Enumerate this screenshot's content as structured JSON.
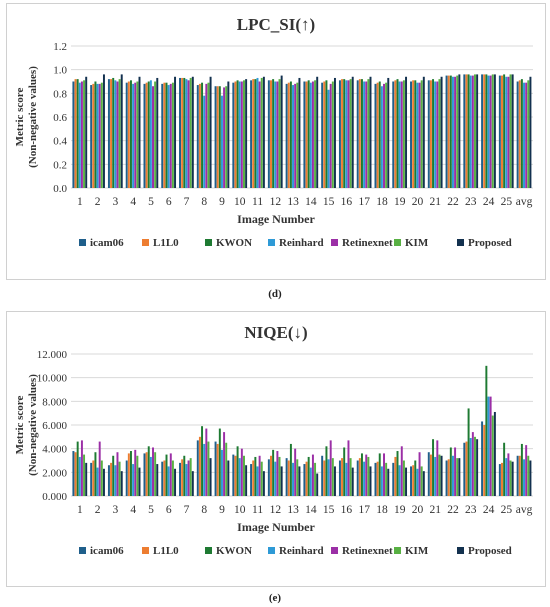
{
  "subfigure_labels": [
    "(d)",
    "(e)"
  ],
  "colors": {
    "icam06": "#1f5f8b",
    "L1L0": "#ed7d31",
    "KWON": "#1e7a32",
    "Reinhard": "#2e9ad6",
    "Retinexnet": "#9b2fa6",
    "KIM": "#58b043",
    "Proposed": "#13314f"
  },
  "chart_data": [
    {
      "type": "bar",
      "title": "LPC_SI(↑)",
      "xlabel": "Image Number",
      "ylabel_lines": [
        "Metric score",
        "(Non-negative values)"
      ],
      "ylim": [
        0,
        1.2
      ],
      "yticks": [
        "0.0",
        "0.2",
        "0.4",
        "0.6",
        "0.8",
        "1.0",
        "1.2"
      ],
      "grid": true,
      "legend_position": "bottom",
      "categories": [
        "1",
        "2",
        "3",
        "4",
        "5",
        "6",
        "7",
        "8",
        "9",
        "10",
        "11",
        "12",
        "13",
        "14",
        "15",
        "16",
        "17",
        "18",
        "19",
        "20",
        "21",
        "22",
        "23",
        "24",
        "25",
        "avg"
      ],
      "series": [
        {
          "name": "icam06",
          "values": [
            0.9,
            0.87,
            0.92,
            0.89,
            0.88,
            0.88,
            0.93,
            0.87,
            0.86,
            0.89,
            0.91,
            0.91,
            0.88,
            0.9,
            0.89,
            0.91,
            0.91,
            0.88,
            0.9,
            0.9,
            0.91,
            0.95,
            0.96,
            0.96,
            0.95,
            0.9
          ]
        },
        {
          "name": "L1L0",
          "values": [
            0.92,
            0.88,
            0.92,
            0.9,
            0.89,
            0.89,
            0.93,
            0.88,
            0.86,
            0.9,
            0.92,
            0.91,
            0.89,
            0.9,
            0.9,
            0.92,
            0.92,
            0.89,
            0.91,
            0.91,
            0.91,
            0.95,
            0.96,
            0.96,
            0.95,
            0.91
          ]
        },
        {
          "name": "KWON",
          "values": [
            0.92,
            0.9,
            0.93,
            0.91,
            0.9,
            0.89,
            0.93,
            0.89,
            0.86,
            0.91,
            0.92,
            0.92,
            0.9,
            0.91,
            0.91,
            0.92,
            0.92,
            0.9,
            0.92,
            0.91,
            0.92,
            0.95,
            0.96,
            0.96,
            0.96,
            0.92
          ]
        },
        {
          "name": "Reinhard",
          "values": [
            0.89,
            0.88,
            0.91,
            0.88,
            0.91,
            0.87,
            0.92,
            0.78,
            0.78,
            0.9,
            0.93,
            0.9,
            0.87,
            0.89,
            0.83,
            0.91,
            0.9,
            0.86,
            0.9,
            0.89,
            0.9,
            0.94,
            0.95,
            0.95,
            0.94,
            0.89
          ]
        },
        {
          "name": "Retinexnet",
          "values": [
            0.9,
            0.88,
            0.9,
            0.89,
            0.86,
            0.88,
            0.91,
            0.88,
            0.85,
            0.9,
            0.9,
            0.9,
            0.88,
            0.9,
            0.88,
            0.91,
            0.9,
            0.88,
            0.9,
            0.89,
            0.9,
            0.94,
            0.95,
            0.95,
            0.94,
            0.89
          ]
        },
        {
          "name": "KIM",
          "values": [
            0.91,
            0.89,
            0.92,
            0.9,
            0.9,
            0.89,
            0.93,
            0.89,
            0.86,
            0.91,
            0.93,
            0.92,
            0.89,
            0.91,
            0.9,
            0.92,
            0.92,
            0.89,
            0.91,
            0.91,
            0.92,
            0.95,
            0.96,
            0.96,
            0.96,
            0.91
          ]
        },
        {
          "name": "Proposed",
          "values": [
            0.94,
            0.96,
            0.96,
            0.94,
            0.93,
            0.94,
            0.94,
            0.94,
            0.9,
            0.92,
            0.94,
            0.95,
            0.93,
            0.94,
            0.93,
            0.94,
            0.94,
            0.93,
            0.94,
            0.94,
            0.94,
            0.96,
            0.96,
            0.96,
            0.96,
            0.94
          ]
        }
      ]
    },
    {
      "type": "bar",
      "title": "NIQE(↓)",
      "xlabel": "Image Number",
      "ylabel_lines": [
        "Metric score",
        "(Non-negative values)"
      ],
      "ylim": [
        0,
        12
      ],
      "yticks": [
        "0.000",
        "2.000",
        "4.000",
        "6.000",
        "8.000",
        "10.000",
        "12.000"
      ],
      "grid": true,
      "legend_position": "bottom",
      "categories": [
        "1",
        "2",
        "3",
        "4",
        "5",
        "6",
        "7",
        "8",
        "9",
        "10",
        "11",
        "12",
        "13",
        "14",
        "15",
        "16",
        "17",
        "18",
        "19",
        "20",
        "21",
        "22",
        "23",
        "24",
        "25",
        "avg"
      ],
      "series": [
        {
          "name": "icam06",
          "values": [
            3.8,
            2.8,
            2.6,
            3.0,
            3.6,
            2.9,
            2.8,
            4.7,
            4.6,
            3.5,
            2.7,
            3.1,
            3.2,
            2.7,
            3.4,
            3.0,
            3.0,
            2.8,
            2.8,
            2.5,
            3.7,
            3.0,
            4.5,
            6.3,
            2.7,
            3.4
          ]
        },
        {
          "name": "L1L0",
          "values": [
            3.7,
            3.0,
            2.8,
            3.6,
            3.7,
            3.0,
            3.1,
            5.0,
            4.4,
            3.4,
            3.0,
            3.4,
            3.0,
            2.9,
            3.0,
            3.2,
            3.2,
            2.9,
            3.3,
            2.6,
            3.5,
            3.1,
            4.6,
            6.0,
            2.8,
            3.4
          ]
        },
        {
          "name": "KWON",
          "values": [
            4.6,
            3.7,
            3.4,
            3.8,
            4.2,
            3.5,
            3.4,
            5.9,
            5.7,
            4.2,
            3.3,
            3.9,
            4.4,
            3.3,
            4.2,
            4.1,
            3.6,
            3.6,
            3.8,
            3.0,
            4.8,
            4.1,
            7.4,
            11.0,
            4.5,
            4.4
          ]
        },
        {
          "name": "Reinhard",
          "values": [
            3.3,
            2.4,
            2.6,
            2.7,
            3.3,
            2.5,
            2.7,
            4.4,
            3.9,
            3.2,
            2.5,
            2.9,
            2.8,
            2.4,
            3.1,
            2.8,
            2.9,
            2.5,
            2.6,
            2.3,
            3.3,
            3.4,
            4.9,
            8.4,
            3.2,
            3.1
          ]
        },
        {
          "name": "Retinexnet",
          "values": [
            4.7,
            4.6,
            3.7,
            3.9,
            4.1,
            3.6,
            3.0,
            5.7,
            5.4,
            4.0,
            3.4,
            3.8,
            4.0,
            3.5,
            4.7,
            4.7,
            3.5,
            3.6,
            4.2,
            3.7,
            4.7,
            4.1,
            5.4,
            8.4,
            3.6,
            4.3
          ]
        },
        {
          "name": "KIM",
          "values": [
            3.5,
            3.0,
            2.9,
            3.4,
            3.7,
            3.0,
            3.2,
            4.6,
            4.5,
            3.4,
            2.9,
            3.3,
            3.1,
            2.8,
            3.2,
            3.2,
            3.3,
            2.8,
            3.0,
            2.5,
            3.5,
            3.2,
            5.0,
            6.8,
            3.0,
            3.4
          ]
        },
        {
          "name": "Proposed",
          "values": [
            2.8,
            2.3,
            2.1,
            2.4,
            2.7,
            2.3,
            2.1,
            3.2,
            3.0,
            2.6,
            2.1,
            2.5,
            2.5,
            1.9,
            2.5,
            2.4,
            2.5,
            2.3,
            2.4,
            2.1,
            3.4,
            3.2,
            4.8,
            7.1,
            2.9,
            3.0
          ]
        }
      ]
    }
  ]
}
